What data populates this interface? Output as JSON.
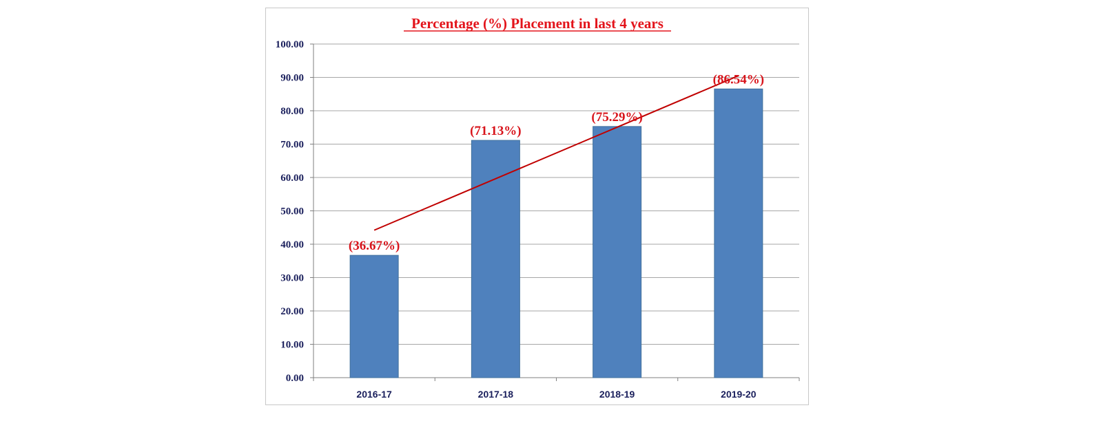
{
  "chart_data": {
    "type": "bar",
    "title": "Percentage (%) Placement in last 4 years",
    "xlabel": "",
    "ylabel": "",
    "categories": [
      "2016-17",
      "2017-18",
      "2018-19",
      "2019-20"
    ],
    "values": [
      36.67,
      71.13,
      75.29,
      86.54
    ],
    "data_labels": [
      "(36.67%)",
      "(71.13%)",
      "(75.29%)",
      "(86.54%)"
    ],
    "ylim": [
      0,
      100
    ],
    "yticks": [
      "0.00",
      "10.00",
      "20.00",
      "30.00",
      "40.00",
      "50.00",
      "60.00",
      "70.00",
      "80.00",
      "90.00",
      "100.00"
    ],
    "grid": true,
    "legend": "none",
    "trendline": {
      "type": "linear",
      "start_value": 44.2,
      "end_value": 90.5
    },
    "colors": {
      "bar": "#4f81bd",
      "bar_edge": "#41719c",
      "trendline": "#c00000",
      "title": "#e3141b",
      "data_label": "#d8141b",
      "axis_text": "#1a1f5c",
      "grid": "#a6a6a6"
    }
  }
}
